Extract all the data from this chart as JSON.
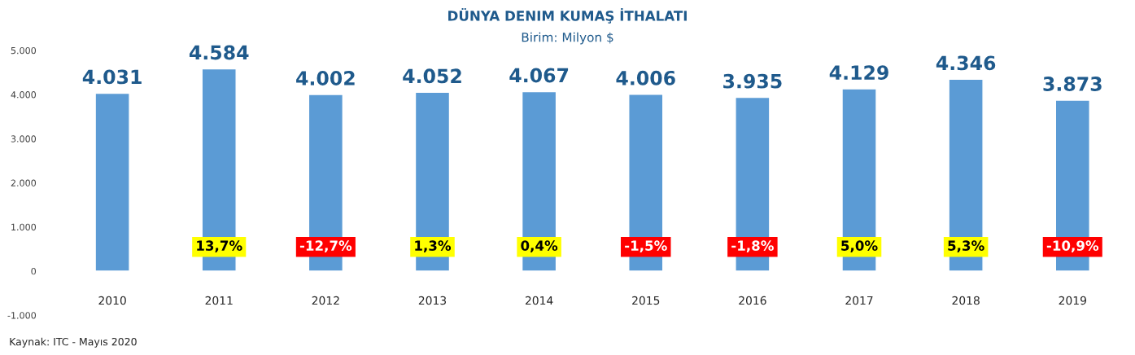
{
  "chart_data": {
    "type": "bar",
    "title": "DÜNYA DENIM KUMAŞ İTHALATI",
    "subtitle": "Birim: Milyon $",
    "categories": [
      "2010",
      "2011",
      "2012",
      "2013",
      "2014",
      "2015",
      "2016",
      "2017",
      "2018",
      "2019"
    ],
    "values": [
      4031,
      4584,
      4002,
      4052,
      4067,
      4006,
      3935,
      4129,
      4346,
      3873
    ],
    "value_labels": [
      "4.031",
      "4.584",
      "4.002",
      "4.052",
      "4.067",
      "4.006",
      "3.935",
      "4.129",
      "4.346",
      "3.873"
    ],
    "color": "#5b9bd5",
    "ylim": [
      -1000,
      5000
    ],
    "yticks": [
      {
        "value": -1000,
        "label": "-1.000"
      },
      {
        "value": 0,
        "label": "0"
      },
      {
        "value": 1000,
        "label": "1.000"
      },
      {
        "value": 2000,
        "label": "2.000"
      },
      {
        "value": 3000,
        "label": "3.000"
      },
      {
        "value": 4000,
        "label": "4.000"
      },
      {
        "value": 5000,
        "label": "5.000"
      }
    ],
    "grid": false,
    "legend": false,
    "annotations": [
      "13,7%",
      "-12,7%",
      "1,3%",
      "0,4%",
      "-1,5%",
      "-1,8%",
      "5,0%",
      "5,3%",
      "-10,9%",
      "Kaynak: ITC - Mayıs 2020"
    ]
  }
}
